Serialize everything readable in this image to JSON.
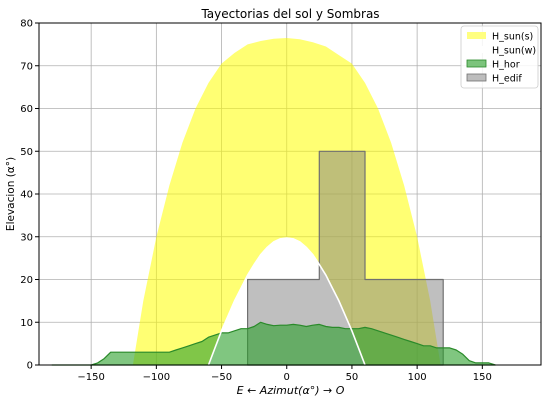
{
  "chart_data": {
    "type": "area",
    "title": "Tayectorias del sol y Sombras",
    "xlabel": "E ← Azimut(α°) → O",
    "ylabel": "Elevacion (α°)",
    "xlim": [
      -190,
      195
    ],
    "ylim": [
      0,
      80
    ],
    "xticks": [
      -150,
      -100,
      -50,
      0,
      50,
      100,
      150
    ],
    "xtick_labels": [
      "−150",
      "−100",
      "−50",
      "0",
      "50",
      "100",
      "150"
    ],
    "yticks": [
      0,
      10,
      20,
      30,
      40,
      50,
      60,
      70,
      80
    ],
    "ytick_labels": [
      "0",
      "10",
      "20",
      "30",
      "40",
      "50",
      "60",
      "70",
      "80"
    ],
    "grid": true,
    "legend_position": "top-right",
    "series": [
      {
        "name": "H_sun(s)",
        "kind": "fill",
        "color": "#ffff00",
        "alpha": 0.55,
        "edge": "none",
        "x": [
          -118,
          -110,
          -100,
          -90,
          -80,
          -70,
          -60,
          -50,
          -40,
          -30,
          -20,
          -10,
          0,
          10,
          20,
          30,
          40,
          50,
          60,
          70,
          80,
          90,
          100,
          110,
          118
        ],
        "y": [
          0,
          15,
          30,
          42,
          52,
          60,
          66,
          70.5,
          73,
          75,
          75.8,
          76.3,
          76.5,
          76.2,
          75.5,
          74.5,
          72.5,
          70.5,
          66,
          60,
          52,
          42,
          30,
          15,
          0
        ]
      },
      {
        "name": "H_sun(w)",
        "kind": "fill",
        "color": "#ffffff",
        "alpha": 1,
        "edge": "#ffffff",
        "x": [
          -60,
          -55,
          -50,
          -45,
          -40,
          -35,
          -30,
          -25,
          -20,
          -15,
          -10,
          -5,
          0,
          5,
          10,
          15,
          20,
          25,
          30,
          35,
          40,
          45,
          50,
          55,
          60
        ],
        "y": [
          0,
          4,
          8,
          11.5,
          15,
          18,
          21,
          23.5,
          25.8,
          27.5,
          28.8,
          29.5,
          29.7,
          29.5,
          28.8,
          27.5,
          25.8,
          23.5,
          21,
          18,
          15,
          11.5,
          8,
          4,
          0
        ]
      },
      {
        "name": "H_edif",
        "kind": "fill",
        "color": "#808080",
        "alpha": 0.5,
        "edge": "#707070",
        "x": [
          -30,
          -30,
          25,
          25,
          60,
          60,
          120,
          120
        ],
        "y": [
          0,
          20,
          20,
          50,
          50,
          20,
          20,
          0
        ]
      },
      {
        "name": "H_hor",
        "kind": "fill",
        "color": "#2ca02c",
        "alpha": 0.6,
        "edge": "#2a8a2a",
        "x": [
          -180,
          -150,
          -145,
          -140,
          -135,
          -130,
          -120,
          -110,
          -100,
          -95,
          -90,
          -85,
          -80,
          -75,
          -70,
          -65,
          -60,
          -55,
          -50,
          -45,
          -40,
          -35,
          -30,
          -25,
          -20,
          -15,
          -10,
          -5,
          0,
          5,
          10,
          15,
          20,
          25,
          30,
          35,
          40,
          45,
          50,
          55,
          60,
          65,
          70,
          75,
          80,
          85,
          90,
          95,
          100,
          105,
          110,
          115,
          120,
          125,
          130,
          135,
          140,
          145,
          150,
          155,
          160
        ],
        "y": [
          0,
          0,
          0.5,
          1.5,
          3,
          3,
          3,
          3,
          3,
          3,
          3,
          3.5,
          4,
          4.5,
          5,
          5.5,
          6.5,
          7,
          7.5,
          7.5,
          8,
          8.5,
          8.5,
          9,
          10,
          9.5,
          9.2,
          9.3,
          9.3,
          9.5,
          9.3,
          9,
          9.3,
          9.5,
          9,
          8.8,
          8.8,
          8.5,
          8.5,
          8.5,
          8.8,
          8.5,
          8,
          7.5,
          7,
          6.5,
          6,
          5.5,
          5,
          4.5,
          4.5,
          4,
          4,
          4,
          3.5,
          2.5,
          1,
          0.5,
          0.5,
          0.5,
          0
        ]
      }
    ],
    "sun_w_line": {
      "color": "#ffffff",
      "x": [
        -60,
        -55,
        -50,
        -45,
        -40,
        -35,
        -30,
        -25,
        -20,
        -15,
        -10,
        -5,
        0,
        5,
        10,
        15,
        20,
        25,
        30,
        35,
        40,
        45,
        50,
        55,
        60
      ],
      "y": [
        0,
        4,
        8,
        11.5,
        15,
        18,
        21,
        23.5,
        25.8,
        27.5,
        28.8,
        29.5,
        29.7,
        29.5,
        28.8,
        27.5,
        25.8,
        23.5,
        21,
        18,
        15,
        11.5,
        8,
        4,
        0
      ]
    },
    "legend": [
      {
        "label": "H_sun(s)",
        "color": "#ffff80",
        "edge": "none"
      },
      {
        "label": "H_sun(w)",
        "color": "#ffffff",
        "edge": "none"
      },
      {
        "label": "H_hor",
        "color": "#7cc47c",
        "edge": "#2a8a2a"
      },
      {
        "label": "H_edif",
        "color": "#bdbdbd",
        "edge": "#707070"
      }
    ]
  }
}
